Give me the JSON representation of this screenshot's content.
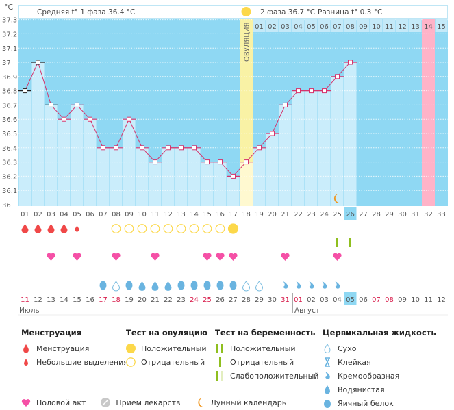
{
  "header": {
    "unit": "°C",
    "phase1": "Средняя t° 1 фаза 36.4 °C",
    "phase2": "2 фаза 36.7 °C",
    "diff": "Разница t° 0.3 °C",
    "ovulation_label": "ОВУЛЯЦИЯ"
  },
  "colors": {
    "sky": "#8fd8f3",
    "bar": "#caedfb",
    "ovulation": "#fff3a0",
    "pink": "#ffb3c8",
    "line": "#d6336c",
    "today": "#8fd8f3"
  },
  "chart_data": {
    "type": "line",
    "ylabel": "°C",
    "ylim": [
      36,
      37.3
    ],
    "yticks": [
      "36",
      "36.1",
      "36.2",
      "36.3",
      "36.4",
      "36.5",
      "36.6",
      "36.7",
      "36.8",
      "36.9",
      "37",
      "37.1",
      "37.2",
      "37.3"
    ],
    "cycle_days": [
      "01",
      "02",
      "03",
      "04",
      "05",
      "06",
      "07",
      "08",
      "09",
      "10",
      "11",
      "12",
      "13",
      "14",
      "15",
      "16",
      "17",
      "18",
      "19",
      "20",
      "21",
      "22",
      "23",
      "24",
      "25",
      "26",
      "27",
      "28",
      "29",
      "30",
      "31",
      "32",
      "33"
    ],
    "temperatures": [
      36.8,
      37.0,
      36.7,
      36.6,
      36.7,
      36.6,
      36.4,
      36.4,
      36.6,
      36.4,
      36.3,
      36.4,
      36.4,
      36.4,
      36.3,
      36.3,
      36.2,
      36.3,
      36.4,
      36.5,
      36.7,
      36.8,
      36.8,
      36.8,
      36.9,
      37.0
    ],
    "excluded_days": [
      1,
      2,
      3
    ],
    "ovulation_day": 18,
    "current_day": 26,
    "expected_period_day": 32,
    "post_ovulation_days": [
      "01",
      "02",
      "03",
      "04",
      "05",
      "06",
      "07",
      "08",
      "09",
      "10",
      "11",
      "12",
      "13",
      "14",
      "15"
    ],
    "moon_day": 25
  },
  "markers": {
    "menstruation": {
      "1": "heavy",
      "2": "heavy",
      "3": "heavy",
      "4": "heavy",
      "5": "light"
    },
    "ovulation_test": {
      "8": "neg",
      "9": "neg",
      "10": "neg",
      "11": "neg",
      "12": "neg",
      "13": "neg",
      "14": "neg",
      "15": "neg",
      "16": "neg",
      "17": "pos"
    },
    "pregnancy_test": {
      "25": "neg",
      "26": "neg"
    },
    "sex": [
      3,
      5,
      8,
      11,
      15,
      16,
      17,
      21,
      25
    ],
    "cervical": {
      "7": "egg",
      "8": "dry",
      "9": "egg",
      "10": "watery",
      "11": "watery",
      "12": "watery",
      "13": "egg",
      "14": "egg",
      "15": "egg",
      "16": "egg",
      "17": "egg",
      "18": "dry",
      "19": "dry",
      "21": "creamy",
      "22": "creamy",
      "23": "creamy",
      "24": "creamy",
      "25": "creamy"
    }
  },
  "dates": [
    "11",
    "12",
    "13",
    "14",
    "15",
    "16",
    "17",
    "18",
    "19",
    "20",
    "21",
    "22",
    "23",
    "24",
    "25",
    "26",
    "27",
    "28",
    "29",
    "30",
    "31",
    "01",
    "02",
    "03",
    "04",
    "05",
    "06",
    "07",
    "08",
    "09",
    "10",
    "11",
    "12"
  ],
  "red_dates": [
    0,
    6,
    7,
    13,
    14,
    20,
    21,
    27,
    28
  ],
  "months": {
    "july": "Июль",
    "august": "Август"
  },
  "legend": {
    "menstruation": {
      "title": "Менструация",
      "items": [
        "Менструация",
        "Небольшие выделения"
      ]
    },
    "ovulation_test": {
      "title": "Тест на овуляцию",
      "items": [
        "Положительный",
        "Отрицательный"
      ]
    },
    "pregnancy_test": {
      "title": "Тест на беременность",
      "items": [
        "Положительный",
        "Отрицательный",
        "Слабоположительный"
      ]
    },
    "cervical": {
      "title": "Цервикальная жидкость",
      "items": [
        "Сухо",
        "Клейкая",
        "Кремообразная",
        "Водянистая",
        "Яичный белок"
      ]
    },
    "other": [
      "Половой акт",
      "Прием лекарств",
      "Лунный календарь"
    ]
  }
}
